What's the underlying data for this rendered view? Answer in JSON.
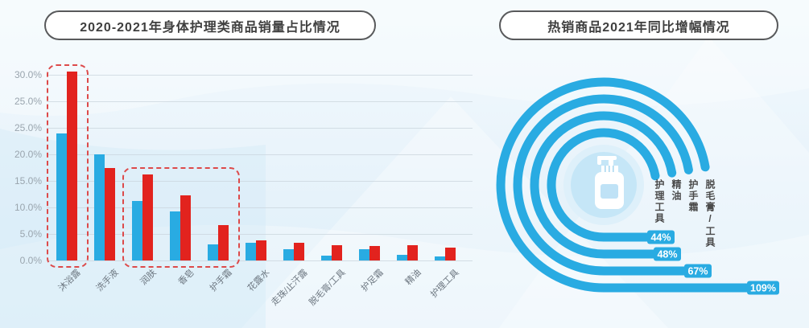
{
  "left_panel": {
    "title": "2020-2021年身体护理类商品销量占比情况"
  },
  "right_panel": {
    "title": "热销商品2021年同比增幅情况"
  },
  "colors": {
    "bar_blue": "#29abe2",
    "bar_red": "#e2231e",
    "ring_blue": "#29abe2",
    "highlight_red": "#dd4a4a",
    "axis_text": "#9aa5ae",
    "category_text": "#6d7781",
    "badge_text": "#ffffff",
    "center_halo": "#def0fa",
    "center_circle": "#c5e6f7",
    "bottle_window": "#bfe2f6"
  },
  "chart_data": [
    {
      "type": "bar",
      "title": "2020-2021年身体护理类商品销量占比情况",
      "categories": [
        "沐浴露",
        "洗手液",
        "润肤",
        "香皂",
        "护手霜",
        "花露水",
        "走珠/止汗露",
        "脱毛膏/工具",
        "护足霜",
        "精油",
        "护理工具"
      ],
      "series": [
        {
          "name": "2020",
          "color": "#29abe2",
          "values_pct": [
            24.0,
            20.0,
            11.2,
            9.2,
            3.0,
            3.3,
            2.1,
            0.9,
            2.1,
            1.1,
            0.8
          ],
          "bar_height_units": [
            4.79,
            4.0,
            2.24,
            1.85,
            0.61,
            0.67,
            0.42,
            0.18,
            0.42,
            0.21,
            0.15
          ]
        },
        {
          "name": "2021",
          "color": "#e2231e",
          "values_pct": [
            31.0,
            17.4,
            16.2,
            12.3,
            6.7,
            3.8,
            3.3,
            2.9,
            2.7,
            2.9,
            2.4
          ],
          "bar_height_units": [
            7.12,
            3.48,
            3.24,
            2.45,
            1.33,
            0.76,
            0.67,
            0.58,
            0.55,
            0.58,
            0.48
          ]
        }
      ],
      "y_axis": {
        "tick_labels_top_to_bottom": [
          "30.0%",
          "25.0%",
          "25.0%",
          "20.0%",
          "15.0%",
          "10.0%",
          "5.0%",
          "0.0%"
        ],
        "pct_per_gridline_step": 5,
        "note": "axis as printed repeats the 25.0% label on two adjacent gridlines"
      },
      "grid": true,
      "legend": "none",
      "highlight_boxes": [
        {
          "category_indices": [
            0
          ]
        },
        {
          "category_indices": [
            2,
            3,
            4
          ]
        }
      ]
    },
    {
      "type": "circular-bar",
      "title": "热销商品2021年同比增幅情况",
      "items": [
        {
          "label": "护理工具",
          "value_pct": 44,
          "badge": "44%"
        },
        {
          "label": "精油",
          "value_pct": 48,
          "badge": "48%"
        },
        {
          "label": "护手霜",
          "value_pct": 67,
          "badge": "67%"
        },
        {
          "label": "脱毛膏/工具",
          "value_pct": 109,
          "badge": "109%"
        }
      ],
      "center_icon": "lotion-bottle-icon",
      "legend": "none"
    }
  ]
}
